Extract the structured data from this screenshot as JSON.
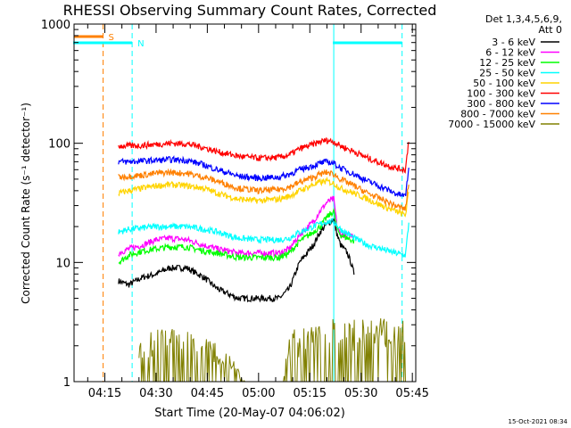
{
  "chart_data": {
    "type": "line",
    "title": "RHESSI Observing Summary Count Rates, Corrected",
    "xlabel": "Start Time (20-May-07 04:06:02)",
    "ylabel": "Corrected Count Rate (s⁻¹ detector⁻¹)",
    "yscale": "log",
    "ylim": [
      1,
      1000
    ],
    "xlim_minutes": [
      0,
      100
    ],
    "y_ticks": [
      "1",
      "10",
      "100",
      "1000"
    ],
    "x_ticks": [
      {
        "label": "04:15",
        "min": 9
      },
      {
        "label": "04:30",
        "min": 24
      },
      {
        "label": "04:45",
        "min": 39
      },
      {
        "label": "05:00",
        "min": 54
      },
      {
        "label": "05:15",
        "min": 69
      },
      {
        "label": "05:30",
        "min": 84
      },
      {
        "label": "05:45",
        "min": 99
      }
    ],
    "legend_header": [
      "Det 1,3,4,5,6,9,",
      "Att 0"
    ],
    "legend_position": "right",
    "timestamp": "15-Oct-2021 08:34",
    "flags": [
      {
        "label": "S",
        "color": "#ff8000",
        "x_start": 0,
        "x_end": 8.5
      },
      {
        "label": "N",
        "color": "#00ffff",
        "x_start": 0,
        "x_end": 17
      },
      {
        "label": "",
        "color": "#00ffff",
        "x_start": 76,
        "x_end": 96
      }
    ],
    "vlines": [
      {
        "min": 8.5,
        "color": "#ff8000",
        "style": "dashed"
      },
      {
        "min": 17,
        "color": "#00ffff",
        "style": "dashed"
      },
      {
        "min": 76,
        "color": "#00ffff",
        "style": "solid"
      },
      {
        "min": 96,
        "color": "#00ffff",
        "style": "dashed"
      }
    ],
    "series": [
      {
        "name": "3 - 6 keV",
        "color": "#000000",
        "points": [
          [
            13,
            7
          ],
          [
            16,
            6.5
          ],
          [
            20,
            7.5
          ],
          [
            24,
            8
          ],
          [
            28,
            9
          ],
          [
            33,
            9
          ],
          [
            38,
            7.5
          ],
          [
            42,
            6
          ],
          [
            48,
            5
          ],
          [
            54,
            5
          ],
          [
            60,
            5
          ],
          [
            63,
            6
          ],
          [
            66,
            10
          ],
          [
            70,
            14
          ],
          [
            72,
            18
          ],
          [
            74,
            21
          ],
          [
            76,
            23
          ],
          [
            77,
            17
          ],
          [
            78,
            14
          ],
          [
            80,
            12
          ],
          [
            81,
            10
          ],
          [
            82,
            8
          ]
        ]
      },
      {
        "name": "6 - 12 keV",
        "color": "#ff00ff",
        "points": [
          [
            13,
            12
          ],
          [
            16,
            13
          ],
          [
            20,
            14
          ],
          [
            24,
            15.5
          ],
          [
            28,
            16
          ],
          [
            33,
            15.5
          ],
          [
            38,
            14
          ],
          [
            42,
            13
          ],
          [
            48,
            12
          ],
          [
            54,
            12
          ],
          [
            60,
            12
          ],
          [
            63,
            13
          ],
          [
            66,
            17
          ],
          [
            70,
            22
          ],
          [
            72,
            27
          ],
          [
            74,
            32
          ],
          [
            76,
            34
          ],
          [
            77,
            20
          ],
          [
            78,
            17
          ],
          [
            80,
            17
          ],
          [
            81,
            17
          ],
          [
            82,
            17
          ]
        ]
      },
      {
        "name": "12 - 25 keV",
        "color": "#00ff00",
        "points": [
          [
            13,
            10
          ],
          [
            16,
            11.5
          ],
          [
            20,
            12.5
          ],
          [
            24,
            13
          ],
          [
            28,
            13.5
          ],
          [
            33,
            13.5
          ],
          [
            38,
            12.5
          ],
          [
            42,
            12
          ],
          [
            48,
            11
          ],
          [
            54,
            11
          ],
          [
            60,
            11
          ],
          [
            63,
            12
          ],
          [
            66,
            15
          ],
          [
            70,
            18
          ],
          [
            72,
            20
          ],
          [
            74,
            24
          ],
          [
            76,
            27
          ],
          [
            77,
            19
          ],
          [
            78,
            17
          ],
          [
            80,
            16
          ],
          [
            81,
            15.5
          ],
          [
            82,
            15
          ]
        ]
      },
      {
        "name": "25 - 50 keV",
        "color": "#00ffff",
        "points": [
          [
            13,
            18
          ],
          [
            16,
            19
          ],
          [
            20,
            19.5
          ],
          [
            24,
            20
          ],
          [
            28,
            20
          ],
          [
            33,
            20
          ],
          [
            38,
            19
          ],
          [
            42,
            18
          ],
          [
            48,
            16
          ],
          [
            54,
            15.5
          ],
          [
            60,
            15.5
          ],
          [
            63,
            16
          ],
          [
            66,
            18
          ],
          [
            70,
            20
          ],
          [
            72,
            21
          ],
          [
            74,
            22
          ],
          [
            76,
            22
          ],
          [
            78,
            19
          ],
          [
            82,
            16
          ],
          [
            86,
            14
          ],
          [
            90,
            13
          ],
          [
            94,
            12
          ],
          [
            97,
            11.5
          ],
          [
            98,
            22
          ]
        ]
      },
      {
        "name": "50 - 100 keV",
        "color": "#ffd400",
        "points": [
          [
            13,
            38
          ],
          [
            16,
            40
          ],
          [
            20,
            42
          ],
          [
            24,
            44
          ],
          [
            28,
            45
          ],
          [
            33,
            44
          ],
          [
            38,
            42
          ],
          [
            42,
            38
          ],
          [
            48,
            34
          ],
          [
            54,
            33
          ],
          [
            60,
            34
          ],
          [
            63,
            36
          ],
          [
            66,
            40
          ],
          [
            70,
            45
          ],
          [
            72,
            47
          ],
          [
            74,
            48
          ],
          [
            76,
            46
          ],
          [
            78,
            42
          ],
          [
            82,
            38
          ],
          [
            86,
            34
          ],
          [
            90,
            30
          ],
          [
            94,
            27
          ],
          [
            97,
            25
          ],
          [
            98,
            40
          ]
        ]
      },
      {
        "name": "100 - 300 keV",
        "color": "#ff0000",
        "points": [
          [
            13,
            95
          ],
          [
            16,
            95
          ],
          [
            20,
            96
          ],
          [
            24,
            98
          ],
          [
            28,
            100
          ],
          [
            33,
            99
          ],
          [
            38,
            92
          ],
          [
            42,
            85
          ],
          [
            48,
            78
          ],
          [
            54,
            75
          ],
          [
            60,
            76
          ],
          [
            63,
            80
          ],
          [
            66,
            90
          ],
          [
            70,
            98
          ],
          [
            72,
            103
          ],
          [
            74,
            106
          ],
          [
            76,
            103
          ],
          [
            78,
            95
          ],
          [
            82,
            85
          ],
          [
            86,
            75
          ],
          [
            90,
            68
          ],
          [
            94,
            62
          ],
          [
            97,
            60
          ],
          [
            98,
            110
          ]
        ]
      },
      {
        "name": "300 - 800 keV",
        "color": "#0000ff",
        "points": [
          [
            13,
            70
          ],
          [
            16,
            70
          ],
          [
            20,
            71
          ],
          [
            24,
            72
          ],
          [
            28,
            73
          ],
          [
            33,
            72
          ],
          [
            38,
            66
          ],
          [
            42,
            60
          ],
          [
            48,
            53
          ],
          [
            54,
            51
          ],
          [
            60,
            52
          ],
          [
            63,
            55
          ],
          [
            66,
            60
          ],
          [
            70,
            65
          ],
          [
            72,
            68
          ],
          [
            74,
            70
          ],
          [
            76,
            68
          ],
          [
            78,
            62
          ],
          [
            82,
            55
          ],
          [
            86,
            48
          ],
          [
            90,
            43
          ],
          [
            94,
            38
          ],
          [
            97,
            36
          ],
          [
            98,
            65
          ]
        ]
      },
      {
        "name": "800 - 7000 keV",
        "color": "#ff8000",
        "points": [
          [
            13,
            52
          ],
          [
            16,
            53
          ],
          [
            20,
            54
          ],
          [
            24,
            56
          ],
          [
            28,
            57
          ],
          [
            33,
            56
          ],
          [
            38,
            52
          ],
          [
            42,
            48
          ],
          [
            48,
            42
          ],
          [
            54,
            40
          ],
          [
            60,
            41
          ],
          [
            63,
            43
          ],
          [
            66,
            47
          ],
          [
            70,
            52
          ],
          [
            72,
            55
          ],
          [
            74,
            57
          ],
          [
            76,
            55
          ],
          [
            78,
            50
          ],
          [
            82,
            44
          ],
          [
            86,
            38
          ],
          [
            90,
            34
          ],
          [
            94,
            30
          ],
          [
            97,
            28
          ],
          [
            98,
            48
          ]
        ]
      },
      {
        "name": "7000 - 15000 keV",
        "color": "#808000",
        "points": [
          [
            19,
            2
          ],
          [
            24,
            2.5
          ],
          [
            30,
            2.5
          ],
          [
            36,
            2.5
          ],
          [
            40,
            2
          ],
          [
            45,
            1.8
          ],
          [
            50,
            1
          ],
          [
            56,
            1
          ],
          [
            61,
            1
          ],
          [
            63,
            2.5
          ],
          [
            68,
            2.5
          ],
          [
            72,
            3
          ],
          [
            76,
            3.5
          ],
          [
            80,
            3
          ],
          [
            85,
            3
          ],
          [
            90,
            3
          ],
          [
            94,
            2.8
          ],
          [
            97,
            3.5
          ]
        ]
      }
    ]
  }
}
